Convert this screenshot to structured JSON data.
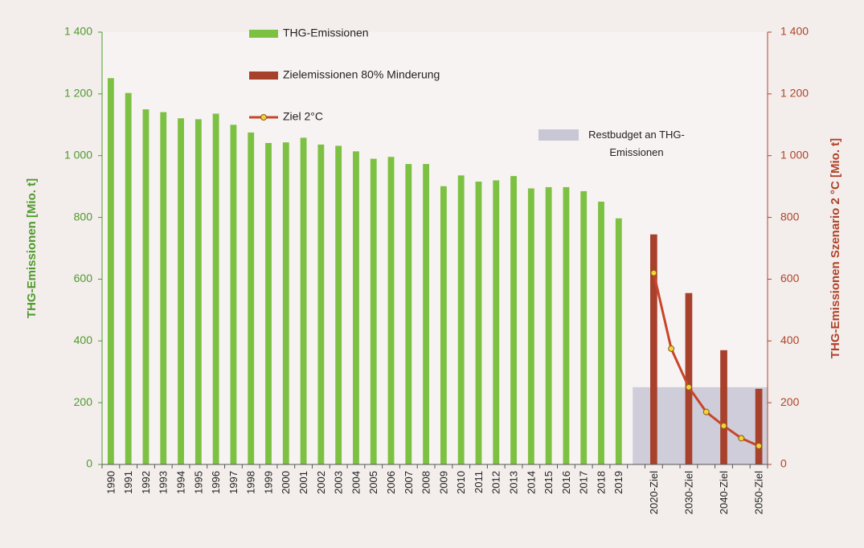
{
  "chart_data": {
    "type": "bar",
    "categories": [
      "1990",
      "1991",
      "1992",
      "1993",
      "1994",
      "1995",
      "1996",
      "1997",
      "1998",
      "1999",
      "2000",
      "2001",
      "2002",
      "2003",
      "2004",
      "2005",
      "2006",
      "2007",
      "2008",
      "2009",
      "2010",
      "2011",
      "2012",
      "2013",
      "2014",
      "2015",
      "2016",
      "2017",
      "2018",
      "2019",
      null,
      "2020-Ziel",
      null,
      "2030-Ziel",
      null,
      "2040-Ziel",
      null,
      "2050-Ziel"
    ],
    "series": [
      {
        "name": "THG-Emissionen",
        "type": "bar",
        "color": "#7dc143",
        "values": [
          1251,
          1203,
          1150,
          1141,
          1121,
          1118,
          1136,
          1100,
          1075,
          1041,
          1043,
          1058,
          1036,
          1032,
          1014,
          990,
          996,
          973,
          973,
          901,
          936,
          916,
          920,
          934,
          894,
          898,
          898,
          885,
          851,
          797,
          null,
          null,
          null,
          null,
          null,
          null,
          null,
          null
        ]
      },
      {
        "name": "Zielemissionen 80% Minderung",
        "type": "bar",
        "color": "#a8412c",
        "values": [
          null,
          null,
          null,
          null,
          null,
          null,
          null,
          null,
          null,
          null,
          null,
          null,
          null,
          null,
          null,
          null,
          null,
          null,
          null,
          null,
          null,
          null,
          null,
          null,
          null,
          null,
          null,
          null,
          null,
          null,
          null,
          745,
          null,
          555,
          null,
          370,
          null,
          245
        ]
      },
      {
        "name": "Ziel 2°C",
        "type": "line",
        "color": "#c8452a",
        "marker_color": "#f2d33a",
        "axis": "y2",
        "values": [
          null,
          null,
          null,
          null,
          null,
          null,
          null,
          null,
          null,
          null,
          null,
          null,
          null,
          null,
          null,
          null,
          null,
          null,
          null,
          null,
          null,
          null,
          null,
          null,
          null,
          null,
          null,
          null,
          null,
          null,
          null,
          620,
          375,
          250,
          170,
          125,
          85,
          60
        ]
      },
      {
        "name": "Restbudget an THG-Emissionen",
        "type": "area",
        "color": "#c9c6d6",
        "values": [
          null,
          null,
          null,
          null,
          null,
          null,
          null,
          null,
          null,
          null,
          null,
          null,
          null,
          null,
          null,
          null,
          null,
          null,
          null,
          null,
          null,
          null,
          null,
          null,
          null,
          null,
          null,
          null,
          null,
          null,
          250,
          250,
          250,
          250,
          250,
          250,
          250,
          250
        ]
      }
    ],
    "y_label": "THG-Emissionen [Mio. t]",
    "y2_label": "THG-Emissionen Szenario 2 °C [Mio. t]",
    "ylim": [
      0,
      1400
    ],
    "yticks": [
      0,
      200,
      400,
      600,
      800,
      {
        "value": 1000,
        "label": "1 000"
      },
      {
        "value": 1200,
        "label": "1 200"
      },
      {
        "value": 1400,
        "label": "1 400"
      }
    ],
    "y2lim": [
      0,
      1400
    ],
    "y2ticks": [
      0,
      200,
      400,
      600,
      800,
      {
        "value": 1000,
        "label": "1 000"
      },
      {
        "value": 1200,
        "label": "1 200"
      },
      {
        "value": 1400,
        "label": "1 400"
      }
    ],
    "y_color": "#4f9a2c",
    "y2_color": "#b0432a",
    "grid": false
  }
}
